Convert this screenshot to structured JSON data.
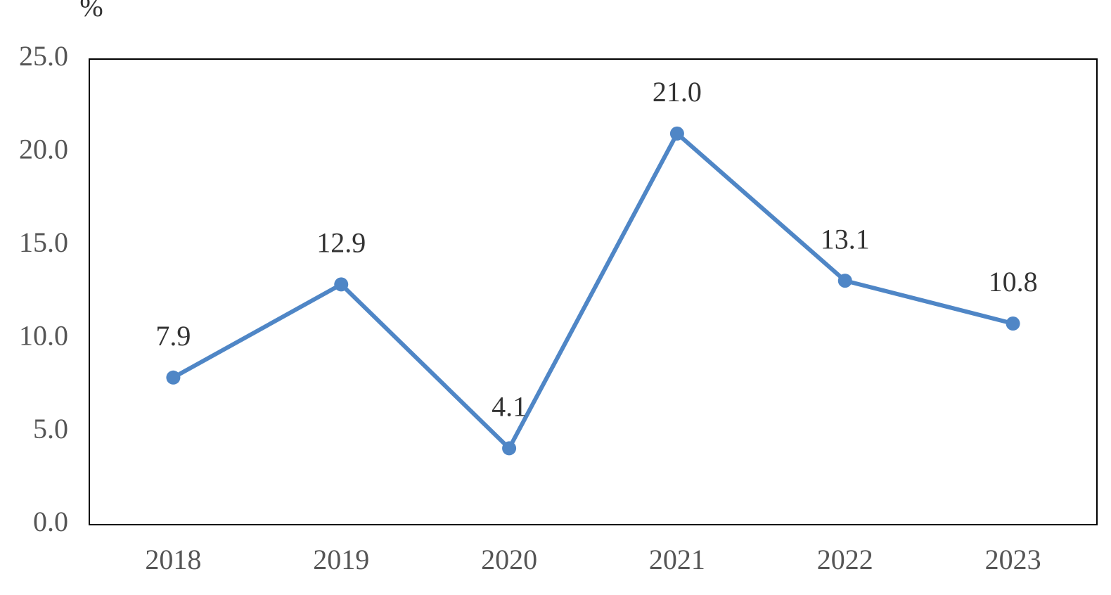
{
  "chart_data": {
    "type": "line",
    "y_label": "%",
    "categories": [
      "2018",
      "2019",
      "2020",
      "2021",
      "2022",
      "2023"
    ],
    "values": [
      7.9,
      12.9,
      4.1,
      21,
      13.1,
      10.8
    ],
    "value_labels": [
      "7.9",
      "12.9",
      "4.1",
      "21.0",
      "13.1",
      "10.8"
    ],
    "color": "#4f86c6",
    "ylim": [
      0,
      25
    ],
    "yticks": [
      {
        "value": 0,
        "label": "0.0"
      },
      {
        "value": 5,
        "label": "5.0"
      },
      {
        "value": 10,
        "label": "10.0"
      },
      {
        "value": 15,
        "label": "15.0"
      },
      {
        "value": 20,
        "label": "20.0"
      },
      {
        "value": 25,
        "label": "25.0"
      }
    ]
  }
}
